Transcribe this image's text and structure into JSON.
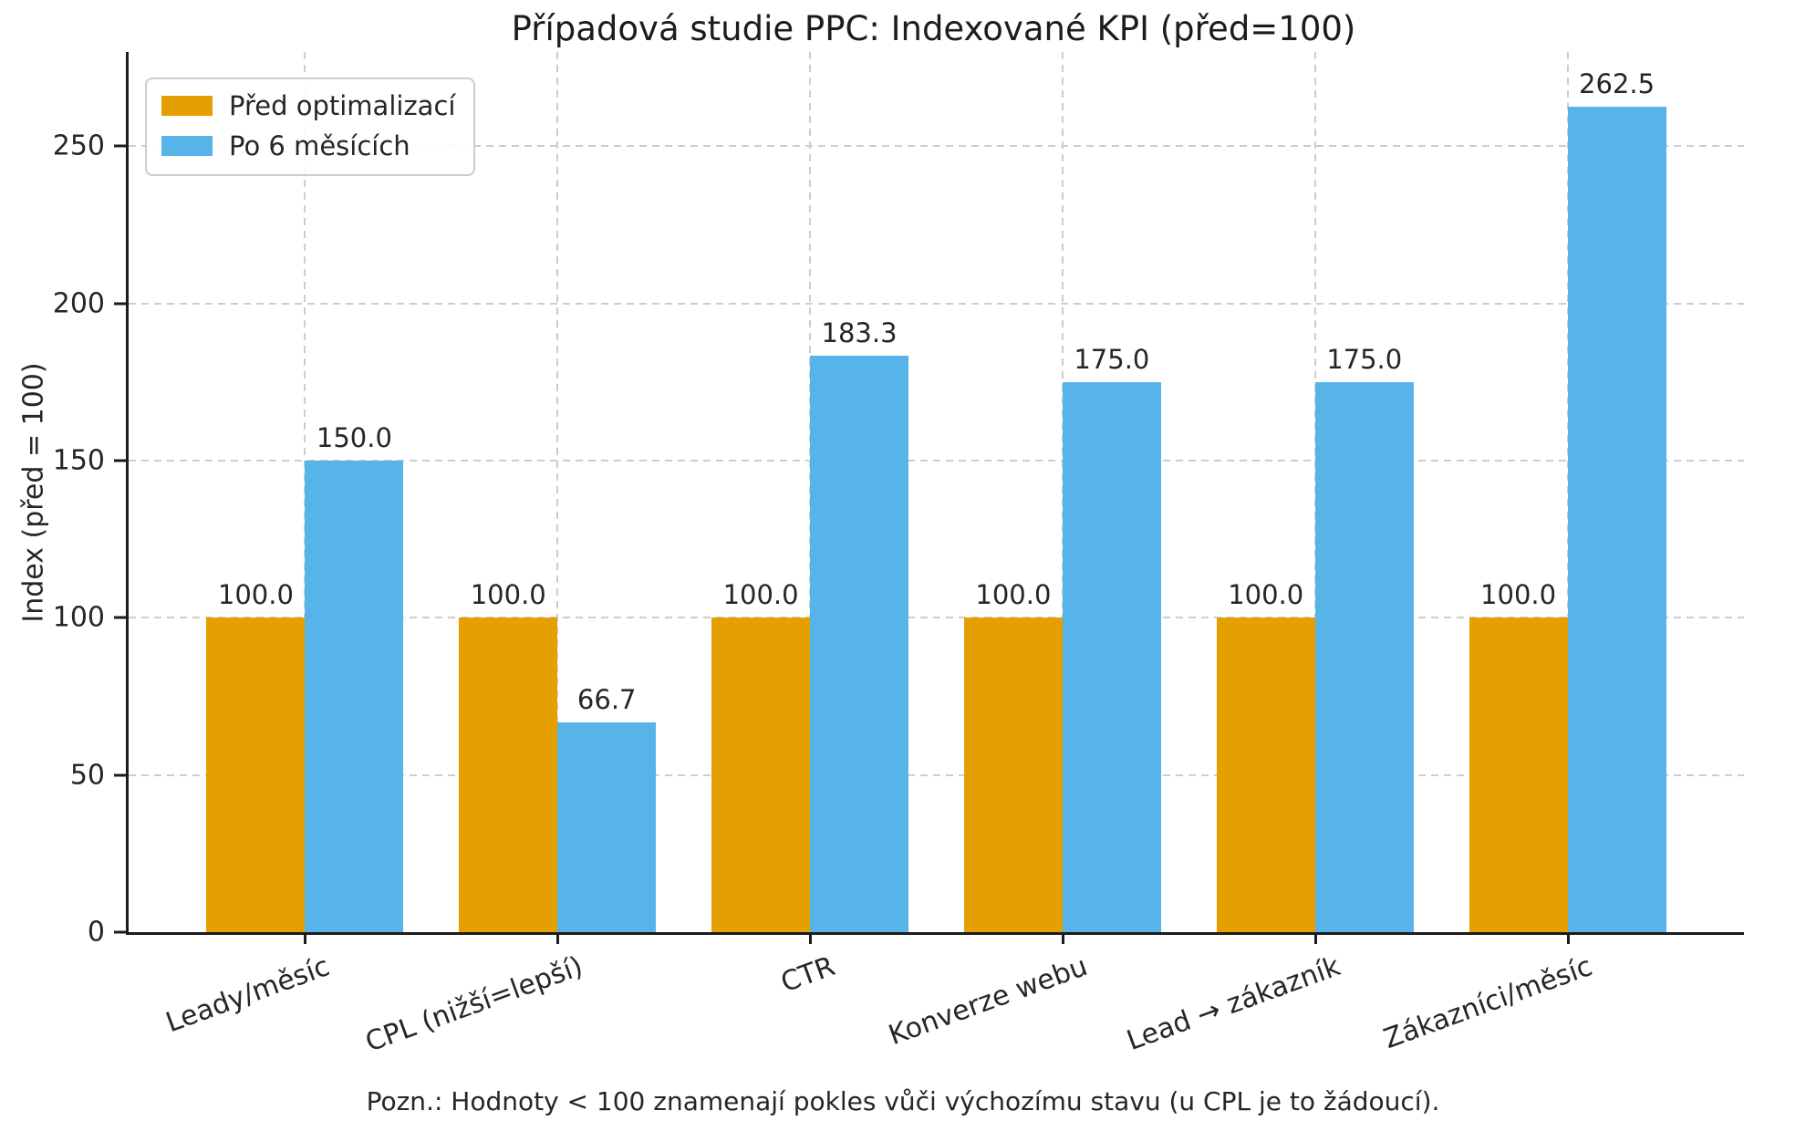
{
  "chart_data": {
    "type": "bar",
    "title": "Případová studie PPC: Indexované KPI (před=100)",
    "ylabel": "Index (před = 100)",
    "xlabel": "",
    "categories": [
      "Leady/měsíc",
      "CPL (nižší=lepší)",
      "CTR",
      "Konverze webu",
      "Lead → zákazník",
      "Zákazníci/měsíc"
    ],
    "series": [
      {
        "name": "Před optimalizací",
        "color": "#E69F00",
        "values": [
          100.0,
          100.0,
          100.0,
          100.0,
          100.0,
          100.0
        ]
      },
      {
        "name": "Po 6 měsících",
        "color": "#56B4E9",
        "values": [
          150.0,
          66.7,
          183.3,
          175.0,
          175.0,
          262.5
        ]
      }
    ],
    "yticks": [
      0,
      50,
      100,
      150,
      200,
      250
    ],
    "ylim": [
      0,
      280
    ],
    "grid": "dashed light-gray, horizontal at yticks and vertical at category centers, behind bars",
    "legend_position": "upper left",
    "value_label_format": "1 decimal place above each bar",
    "note": "Pozn.: Hodnoty < 100 znamenají pokles vůči výchozímu stavu (u CPL je to žádoucí)."
  },
  "colors": {
    "series_before": "#E69F00",
    "series_after": "#56B4E9",
    "grid": "#cdcdcd",
    "spine": "#1c1c1c",
    "text": "#262626",
    "legend_border": "#cccccc",
    "background": "#ffffff"
  }
}
